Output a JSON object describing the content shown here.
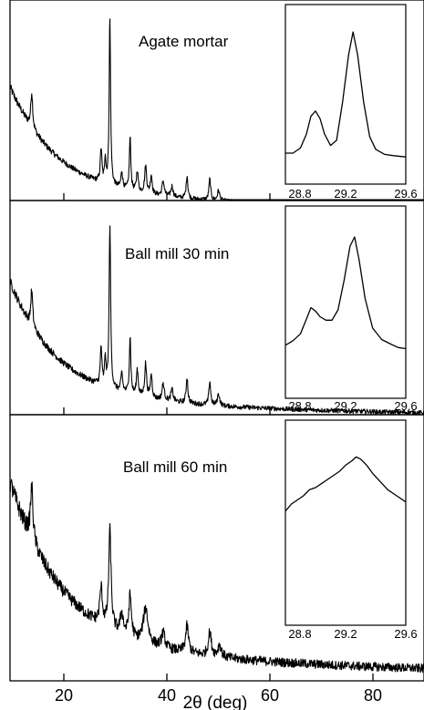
{
  "chart_data": [
    {
      "type": "line",
      "panel_label": "Agate mortar",
      "x_range": [
        10,
        90
      ],
      "xticks": [
        "20",
        "40",
        "60",
        "80"
      ],
      "peaks": [
        {
          "x": 14.2,
          "h": 0.17,
          "w": 0.22
        },
        {
          "x": 27.6,
          "h": 0.16,
          "w": 0.18
        },
        {
          "x": 28.4,
          "h": 0.12,
          "w": 0.14
        },
        {
          "x": 29.3,
          "h": 0.8,
          "w": 0.16
        },
        {
          "x": 31.6,
          "h": 0.08,
          "w": 0.2
        },
        {
          "x": 33.2,
          "h": 0.25,
          "w": 0.17
        },
        {
          "x": 34.6,
          "h": 0.1,
          "w": 0.2
        },
        {
          "x": 36.2,
          "h": 0.13,
          "w": 0.22
        },
        {
          "x": 37.3,
          "h": 0.09,
          "w": 0.2
        },
        {
          "x": 39.6,
          "h": 0.07,
          "w": 0.25
        },
        {
          "x": 41.3,
          "h": 0.05,
          "w": 0.25
        },
        {
          "x": 44.2,
          "h": 0.11,
          "w": 0.2
        },
        {
          "x": 48.6,
          "h": 0.1,
          "w": 0.2
        },
        {
          "x": 50.3,
          "h": 0.05,
          "w": 0.25
        }
      ],
      "inset": {
        "x_range": [
          28.8,
          29.6
        ],
        "xticks": [
          "28.8",
          "29.2",
          "29.6"
        ],
        "points": [
          [
            28.8,
            0.05
          ],
          [
            28.85,
            0.05
          ],
          [
            28.9,
            0.09
          ],
          [
            28.94,
            0.2
          ],
          [
            28.97,
            0.34
          ],
          [
            29.0,
            0.38
          ],
          [
            29.03,
            0.32
          ],
          [
            29.06,
            0.2
          ],
          [
            29.1,
            0.11
          ],
          [
            29.14,
            0.15
          ],
          [
            29.18,
            0.45
          ],
          [
            29.22,
            0.82
          ],
          [
            29.25,
            1.0
          ],
          [
            29.28,
            0.82
          ],
          [
            29.32,
            0.45
          ],
          [
            29.36,
            0.18
          ],
          [
            29.4,
            0.08
          ],
          [
            29.46,
            0.04
          ],
          [
            29.52,
            0.03
          ],
          [
            29.6,
            0.02
          ]
        ]
      }
    },
    {
      "type": "line",
      "panel_label": "Ball mill 30 min",
      "x_range": [
        10,
        90
      ],
      "xticks": [
        "20",
        "40",
        "60",
        "80"
      ],
      "peaks": [
        {
          "x": 14.2,
          "h": 0.15,
          "w": 0.22
        },
        {
          "x": 27.6,
          "h": 0.16,
          "w": 0.18
        },
        {
          "x": 28.4,
          "h": 0.12,
          "w": 0.14
        },
        {
          "x": 29.3,
          "h": 0.7,
          "w": 0.17
        },
        {
          "x": 31.6,
          "h": 0.08,
          "w": 0.2
        },
        {
          "x": 33.2,
          "h": 0.24,
          "w": 0.17
        },
        {
          "x": 34.6,
          "h": 0.11,
          "w": 0.2
        },
        {
          "x": 36.2,
          "h": 0.14,
          "w": 0.22
        },
        {
          "x": 37.3,
          "h": 0.1,
          "w": 0.2
        },
        {
          "x": 39.6,
          "h": 0.07,
          "w": 0.25
        },
        {
          "x": 41.3,
          "h": 0.05,
          "w": 0.25
        },
        {
          "x": 44.2,
          "h": 0.11,
          "w": 0.2
        },
        {
          "x": 48.6,
          "h": 0.1,
          "w": 0.2
        },
        {
          "x": 50.3,
          "h": 0.05,
          "w": 0.25
        }
      ],
      "inset": {
        "x_range": [
          28.8,
          29.6
        ],
        "xticks": [
          "28.8",
          "29.2",
          "29.6"
        ],
        "points": [
          [
            28.8,
            0.05
          ],
          [
            28.85,
            0.09
          ],
          [
            28.9,
            0.15
          ],
          [
            28.94,
            0.28
          ],
          [
            28.97,
            0.38
          ],
          [
            29.0,
            0.35
          ],
          [
            29.03,
            0.3
          ],
          [
            29.07,
            0.27
          ],
          [
            29.11,
            0.27
          ],
          [
            29.15,
            0.36
          ],
          [
            29.19,
            0.62
          ],
          [
            29.23,
            0.92
          ],
          [
            29.26,
            1.0
          ],
          [
            29.29,
            0.8
          ],
          [
            29.33,
            0.46
          ],
          [
            29.38,
            0.2
          ],
          [
            29.44,
            0.1
          ],
          [
            29.5,
            0.06
          ],
          [
            29.55,
            0.03
          ],
          [
            29.6,
            0.02
          ]
        ]
      }
    },
    {
      "type": "line",
      "panel_label": "Ball mill 60 min",
      "x_range": [
        10,
        90
      ],
      "xticks": [
        "20",
        "40",
        "60",
        "80"
      ],
      "xlabel": "2θ (deg)",
      "peaks": [
        {
          "x": 14.2,
          "h": 0.18,
          "w": 0.3
        },
        {
          "x": 27.6,
          "h": 0.12,
          "w": 0.3
        },
        {
          "x": 29.3,
          "h": 0.33,
          "w": 0.28
        },
        {
          "x": 31.6,
          "h": 0.07,
          "w": 0.35
        },
        {
          "x": 33.2,
          "h": 0.14,
          "w": 0.3
        },
        {
          "x": 36.2,
          "h": 0.12,
          "w": 0.55
        },
        {
          "x": 39.6,
          "h": 0.05,
          "w": 0.4
        },
        {
          "x": 44.2,
          "h": 0.09,
          "w": 0.35
        },
        {
          "x": 48.6,
          "h": 0.08,
          "w": 0.35
        },
        {
          "x": 50.5,
          "h": 0.04,
          "w": 0.4
        }
      ],
      "inset": {
        "x_range": [
          28.8,
          29.6
        ],
        "xticks": [
          "28.8",
          "29.2",
          "29.6"
        ],
        "points": [
          [
            28.8,
            0.35
          ],
          [
            28.84,
            0.42
          ],
          [
            28.88,
            0.46
          ],
          [
            28.92,
            0.5
          ],
          [
            28.96,
            0.56
          ],
          [
            29.0,
            0.58
          ],
          [
            29.04,
            0.62
          ],
          [
            29.08,
            0.66
          ],
          [
            29.12,
            0.7
          ],
          [
            29.16,
            0.74
          ],
          [
            29.2,
            0.8
          ],
          [
            29.24,
            0.84
          ],
          [
            29.27,
            0.88
          ],
          [
            29.3,
            0.86
          ],
          [
            29.34,
            0.8
          ],
          [
            29.38,
            0.72
          ],
          [
            29.43,
            0.64
          ],
          [
            29.48,
            0.56
          ],
          [
            29.54,
            0.5
          ],
          [
            29.6,
            0.44
          ]
        ]
      }
    }
  ]
}
